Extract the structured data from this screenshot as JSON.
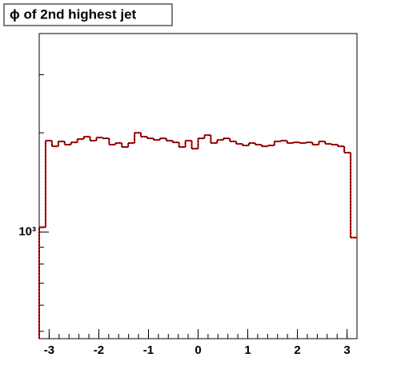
{
  "chart_data": {
    "type": "histogram",
    "title": "ϕ of 2nd highest jet",
    "bins": [
      -3.2,
      -3.072,
      -2.944,
      -2.816,
      -2.688,
      -2.56,
      -2.432,
      -2.304,
      -2.176,
      -2.048,
      -1.92,
      -1.792,
      -1.664,
      -1.536,
      -1.408,
      -1.28,
      -1.152,
      -1.024,
      -0.896,
      -0.768,
      -0.64,
      -0.512,
      -0.384,
      -0.256,
      -0.128,
      0,
      0.128,
      0.256,
      0.384,
      0.512,
      0.64,
      0.768,
      0.896,
      1.024,
      1.152,
      1.28,
      1.408,
      1.536,
      1.664,
      1.792,
      1.92,
      2.048,
      2.176,
      2.304,
      2.432,
      2.56,
      2.688,
      2.816,
      2.944,
      3.072,
      3.2
    ],
    "values": [
      1034,
      1893,
      1820,
      1883,
      1841,
      1871,
      1914,
      1946,
      1893,
      1935,
      1924,
      1841,
      1862,
      1811,
      1862,
      2000,
      1946,
      1924,
      1903,
      1924,
      1893,
      1871,
      1811,
      1893,
      1790,
      1924,
      1968,
      1862,
      1903,
      1924,
      1883,
      1851,
      1831,
      1862,
      1841,
      1820,
      1831,
      1883,
      1893,
      1862,
      1871,
      1862,
      1871,
      1841,
      1883,
      1851,
      1841,
      1820,
      1741,
      962
    ],
    "color": "#cc0000",
    "overlay_color": "#000000",
    "xlim": [
      -3.2,
      3.2
    ],
    "xticks": [
      -3,
      -2,
      -1,
      0,
      1,
      2,
      3
    ],
    "ylim": [
      475,
      4000
    ],
    "log_y": true,
    "yticks": [
      {
        "value": 1000,
        "label": "10³"
      }
    ],
    "yminor": [
      500,
      600,
      700,
      800,
      900,
      2000,
      3000
    ]
  }
}
